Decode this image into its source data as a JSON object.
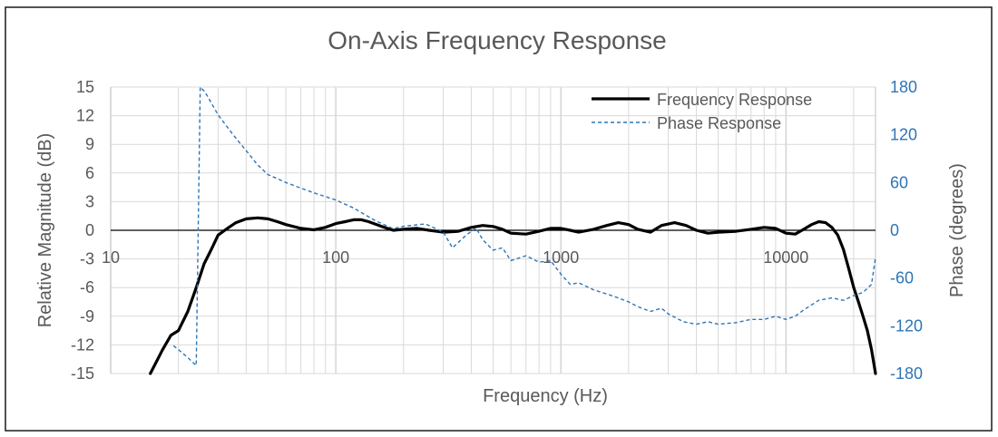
{
  "chart_data": {
    "type": "line",
    "title": "On-Axis Frequency Response",
    "xlabel": "Frequency (Hz)",
    "ylabel": "Relative Magnitude (dB)",
    "y2label": "Phase (degrees)",
    "x_scale": "log",
    "xlim": [
      10,
      25000
    ],
    "ylim": [
      -15,
      15
    ],
    "y2lim": [
      -180,
      180
    ],
    "x_ticks": [
      10,
      100,
      1000,
      10000
    ],
    "x_tick_labels": [
      "10",
      "100",
      "1000",
      "10000"
    ],
    "y_ticks": [
      15,
      12,
      9,
      6,
      3,
      0,
      -3,
      -6,
      -9,
      -12,
      -15
    ],
    "y_tick_labels": [
      "15",
      "12",
      "9",
      "6",
      "3",
      "0",
      "-3",
      "-6",
      "-9",
      "-12",
      "-15"
    ],
    "y2_ticks": [
      180,
      120,
      60,
      0,
      -60,
      -120,
      -180
    ],
    "y2_tick_labels": [
      "180",
      "120",
      "60",
      "0",
      "-60",
      "-120",
      "-180"
    ],
    "grid": true,
    "legend_position": "top-right",
    "colors": {
      "frequency": "#000000",
      "phase": "#2e75b6",
      "text": "#595959"
    },
    "series": [
      {
        "name": "Frequency Response",
        "axis": "left",
        "style": "solid",
        "x": [
          15,
          17,
          18.5,
          20,
          22,
          24,
          26,
          28,
          30,
          33,
          36,
          40,
          45,
          50,
          55,
          60,
          70,
          80,
          90,
          100,
          110,
          120,
          130,
          140,
          160,
          180,
          200,
          230,
          260,
          300,
          350,
          400,
          450,
          500,
          550,
          600,
          700,
          800,
          900,
          1000,
          1100,
          1200,
          1400,
          1600,
          1800,
          2000,
          2200,
          2500,
          2800,
          3200,
          3600,
          4000,
          4500,
          5000,
          6000,
          7000,
          8000,
          9000,
          10000,
          11000,
          12000,
          13000,
          14000,
          15000,
          16000,
          17000,
          18000,
          19000,
          20000,
          21000,
          22000,
          23000,
          24000,
          25000
        ],
        "values": [
          -15,
          -12.5,
          -11,
          -10.5,
          -8.5,
          -6,
          -3.5,
          -2,
          -0.5,
          0.2,
          0.8,
          1.2,
          1.3,
          1.2,
          0.9,
          0.6,
          0.2,
          0.05,
          0.3,
          0.7,
          0.9,
          1.1,
          1.1,
          0.9,
          0.4,
          0,
          0.1,
          0.2,
          0,
          -0.2,
          -0.1,
          0.3,
          0.5,
          0.4,
          0.1,
          -0.3,
          -0.4,
          -0.1,
          0.2,
          0.2,
          0,
          -0.2,
          0.1,
          0.5,
          0.8,
          0.6,
          0.1,
          -0.2,
          0.5,
          0.8,
          0.5,
          0,
          -0.3,
          -0.2,
          -0.1,
          0.1,
          0.3,
          0.2,
          -0.3,
          -0.4,
          0.1,
          0.6,
          0.9,
          0.8,
          0.3,
          -0.5,
          -2,
          -4,
          -6,
          -7.5,
          -9,
          -10.5,
          -12.5,
          -15
        ]
      },
      {
        "name": "Phase Response",
        "axis": "right",
        "style": "dashed",
        "x": [
          19,
          20,
          22,
          24,
          25,
          26,
          27,
          28,
          30,
          35,
          40,
          45,
          50,
          60,
          70,
          80,
          100,
          120,
          150,
          180,
          200,
          250,
          300,
          330,
          380,
          420,
          450,
          500,
          550,
          600,
          700,
          800,
          900,
          1000,
          1100,
          1200,
          1400,
          1600,
          1800,
          2000,
          2200,
          2500,
          2800,
          3000,
          3500,
          4000,
          4500,
          5000,
          6000,
          7000,
          8000,
          9000,
          10000,
          11000,
          12000,
          14000,
          16000,
          18000,
          20000,
          22000,
          24000,
          25000
        ],
        "values": [
          -145,
          -150,
          -160,
          -170,
          180,
          175,
          168,
          160,
          145,
          120,
          100,
          82,
          70,
          60,
          53,
          47,
          38,
          28,
          12,
          2,
          5,
          8,
          -2,
          -22,
          -6,
          3,
          -12,
          -25,
          -22,
          -38,
          -32,
          -40,
          -38,
          -55,
          -68,
          -66,
          -75,
          -80,
          -85,
          -90,
          -96,
          -102,
          -98,
          -105,
          -115,
          -118,
          -115,
          -118,
          -116,
          -112,
          -112,
          -108,
          -112,
          -108,
          -100,
          -88,
          -85,
          -88,
          -82,
          -78,
          -68,
          -34
        ]
      }
    ]
  }
}
